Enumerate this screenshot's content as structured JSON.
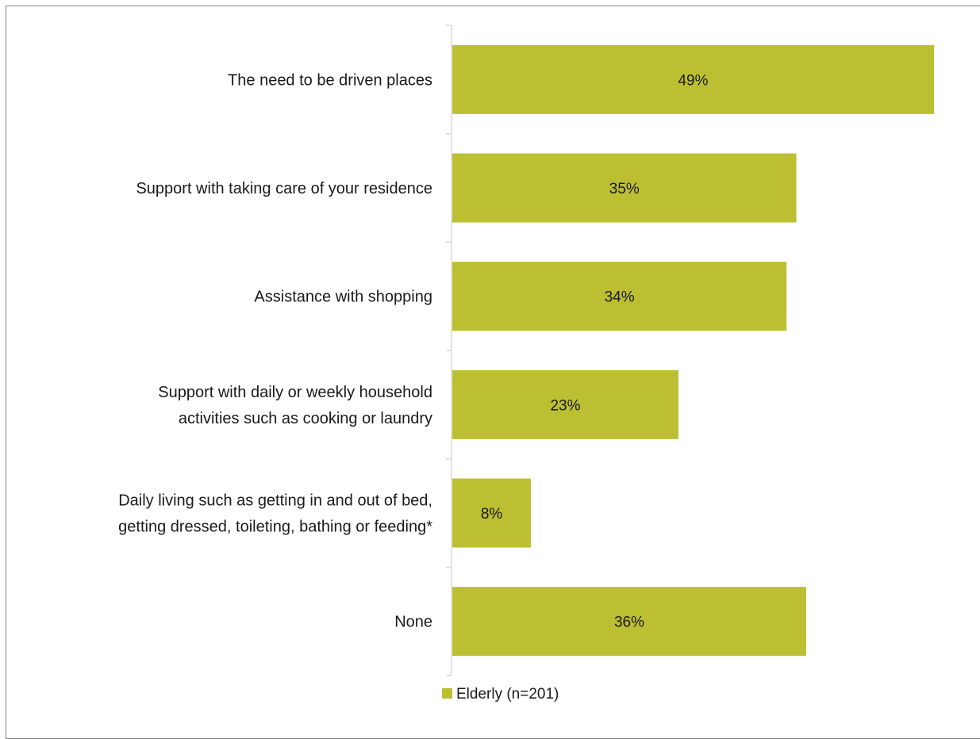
{
  "chart_data": {
    "type": "bar",
    "orientation": "horizontal",
    "categories": [
      [
        "The need to be driven places"
      ],
      [
        "Support with taking care of your residence"
      ],
      [
        "Assistance with shopping"
      ],
      [
        "Support with daily or weekly household",
        "activities such as cooking or laundry"
      ],
      [
        "Daily living such as getting in and out of bed,",
        "getting dressed, toileting, bathing or feeding*"
      ],
      [
        "None"
      ]
    ],
    "series": [
      {
        "name": "Elderly (n=201)",
        "values": [
          49,
          35,
          34,
          23,
          8,
          36
        ],
        "labels": [
          "49%",
          "35%",
          "34%",
          "23%",
          "8%",
          "36%"
        ],
        "color": "#bcbf32"
      }
    ],
    "xlim": [
      0,
      49
    ],
    "grid": false,
    "legend_position": "bottom"
  }
}
